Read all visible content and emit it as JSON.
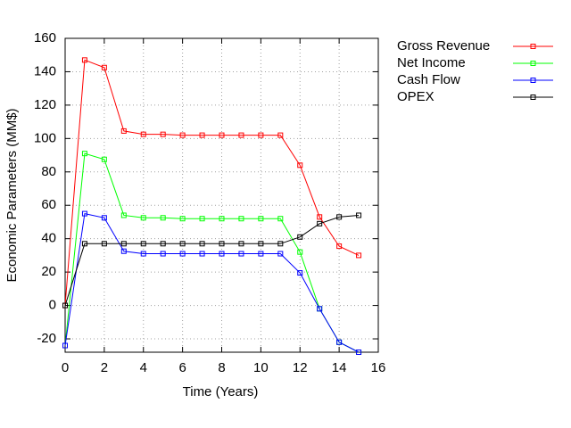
{
  "chart_data": {
    "type": "line",
    "xlabel": "Time (Years)",
    "ylabel": "Economic Parameters (MM$)",
    "x": [
      0,
      1,
      2,
      3,
      4,
      5,
      6,
      7,
      8,
      9,
      10,
      11,
      12,
      13,
      14,
      15
    ],
    "series": [
      {
        "name": "Gross Revenue",
        "color": "#ff0000",
        "values": [
          0,
          147,
          142.5,
          104.5,
          102.5,
          102.5,
          102,
          102,
          102,
          102,
          102,
          102,
          84,
          53,
          35.5,
          30
        ]
      },
      {
        "name": "Net Income",
        "color": "#00ff00",
        "values": [
          -24,
          91,
          87.5,
          54,
          52.5,
          52.5,
          52,
          52,
          52,
          52,
          52,
          52,
          32,
          -2,
          -22,
          -28
        ]
      },
      {
        "name": "Cash Flow",
        "color": "#0000ff",
        "values": [
          -24,
          55,
          52.5,
          32.5,
          31,
          31,
          31,
          31,
          31,
          31,
          31,
          31,
          19.5,
          -2,
          -22,
          -28
        ]
      },
      {
        "name": "OPEX",
        "color": "#000000",
        "values": [
          0,
          37,
          37,
          37,
          37,
          37,
          37,
          37,
          37,
          37,
          37,
          37,
          41,
          49,
          53,
          54
        ]
      }
    ],
    "xlim": [
      0,
      16
    ],
    "xticks": [
      0,
      2,
      4,
      6,
      8,
      10,
      12,
      14,
      16
    ],
    "ylim": [
      -28,
      160
    ],
    "yticks": [
      -20,
      0,
      20,
      40,
      60,
      80,
      100,
      120,
      140,
      160
    ],
    "grid": true,
    "legend": "right"
  }
}
